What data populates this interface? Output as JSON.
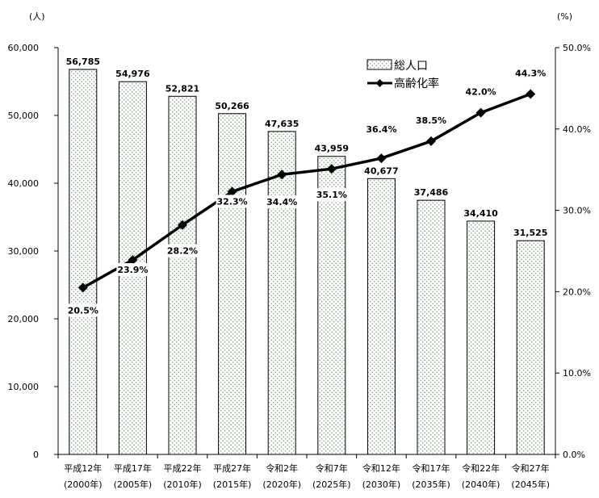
{
  "chart_data": {
    "type": "bar",
    "categories": [
      [
        "平成12年",
        "(2000年)"
      ],
      [
        "平成17年",
        "(2005年)"
      ],
      [
        "平成22年",
        "(2010年)"
      ],
      [
        "平成27年",
        "(2015年)"
      ],
      [
        "令和2年",
        "(2020年)"
      ],
      [
        "令和7年",
        "(2025年)"
      ],
      [
        "令和12年",
        "(2030年)"
      ],
      [
        "令和17年",
        "(2035年)"
      ],
      [
        "令和22年",
        "(2040年)"
      ],
      [
        "令和27年",
        "(2045年)"
      ]
    ],
    "series": [
      {
        "name": "総人口",
        "type": "bar",
        "axis": "left",
        "values": [
          56785,
          54976,
          52821,
          50266,
          47635,
          43959,
          40677,
          37486,
          34410,
          31525
        ],
        "labels": [
          "56,785",
          "54,976",
          "52,821",
          "50,266",
          "47,635",
          "43,959",
          "40,677",
          "37,486",
          "34,410",
          "31,525"
        ]
      },
      {
        "name": "高齢化率",
        "type": "line",
        "axis": "right",
        "values": [
          20.5,
          23.9,
          28.2,
          32.3,
          34.4,
          35.1,
          36.4,
          38.5,
          42.0,
          44.3
        ],
        "labels": [
          "20.5%",
          "23.9%",
          "28.2%",
          "32.3%",
          "34.4%",
          "35.1%",
          "36.4%",
          "38.5%",
          "42.0%",
          "44.3%"
        ]
      }
    ],
    "y_left": {
      "unit": "(人)",
      "ylim": [
        0,
        60000
      ],
      "ticks": [
        "0",
        "10,000",
        "20,000",
        "30,000",
        "40,000",
        "50,000",
        "60,000"
      ]
    },
    "y_right": {
      "unit": "(%)",
      "ylim": [
        0,
        50
      ],
      "ticks": [
        "0.0%",
        "10.0%",
        "20.0%",
        "30.0%",
        "40.0%",
        "50.0%"
      ]
    },
    "legend_position": "top-right",
    "grid": false
  }
}
